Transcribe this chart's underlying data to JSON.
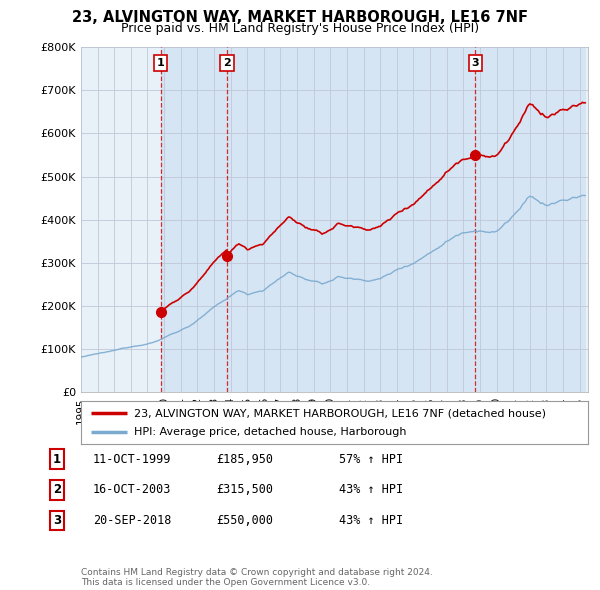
{
  "title": "23, ALVINGTON WAY, MARKET HARBOROUGH, LE16 7NF",
  "subtitle": "Price paid vs. HM Land Registry's House Price Index (HPI)",
  "purchases": [
    {
      "date_num": 1999.79,
      "price": 185950,
      "label": "1"
    },
    {
      "date_num": 2003.79,
      "price": 315500,
      "label": "2"
    },
    {
      "date_num": 2018.72,
      "price": 550000,
      "label": "3"
    }
  ],
  "purchase_dates_str": [
    "11-OCT-1999",
    "16-OCT-2003",
    "20-SEP-2018"
  ],
  "purchase_prices_str": [
    "£185,950",
    "£315,500",
    "£550,000"
  ],
  "purchase_pct": [
    "57%",
    "43%",
    "43%"
  ],
  "legend_property": "23, ALVINGTON WAY, MARKET HARBOROUGH, LE16 7NF (detached house)",
  "legend_hpi": "HPI: Average price, detached house, Harborough",
  "property_line_color": "#cc0000",
  "hpi_line_color": "#7aaad0",
  "vline_color": "#cc0000",
  "owned_fill_color": "#dce9f5",
  "background_color": "#ffffff",
  "plot_bg_color": "#e8f0f8",
  "grid_color": "#c0c8d8",
  "ylim": [
    0,
    800000
  ],
  "xlim": [
    1995.0,
    2025.5
  ],
  "yticks": [
    0,
    100000,
    200000,
    300000,
    400000,
    500000,
    600000,
    700000,
    800000
  ],
  "footer": "Contains HM Land Registry data © Crown copyright and database right 2024.\nThis data is licensed under the Open Government Licence v3.0."
}
